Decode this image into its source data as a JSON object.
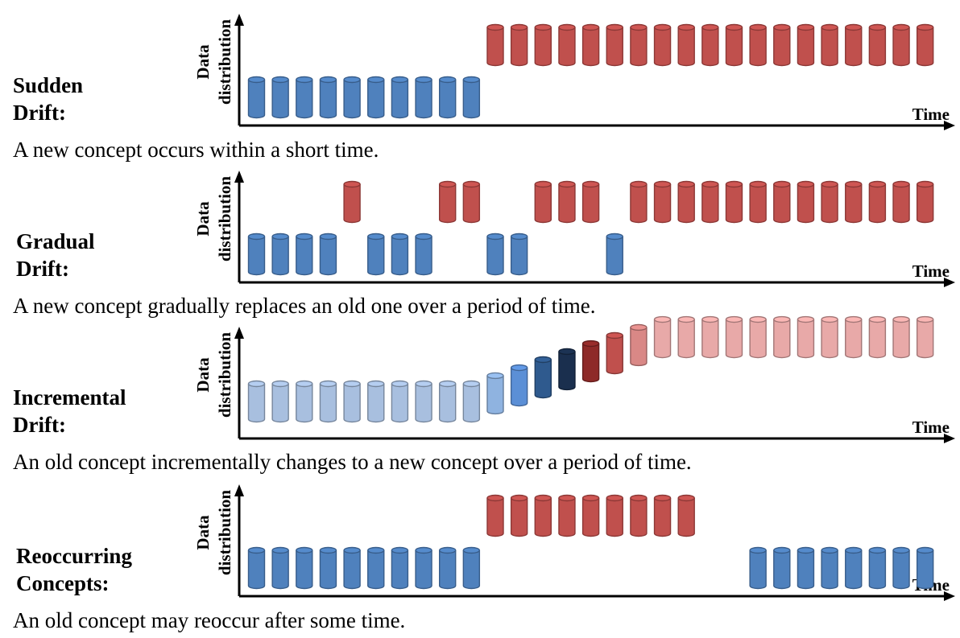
{
  "axis": {
    "y_label_line1": "Data",
    "y_label_line2": "distribution",
    "x_label": "Time"
  },
  "colors": {
    "blue": "#4f81bd",
    "blue_stroke": "#385d8a",
    "red": "#c0504d",
    "red_stroke": "#8c3836"
  },
  "panels": [
    {
      "id": "sudden",
      "title_line1": "Sudden",
      "title_line2": "Drift:",
      "description": "A new concept occurs within a short time.",
      "columns": [
        "b",
        "b",
        "b",
        "b",
        "b",
        "b",
        "b",
        "b",
        "b",
        "b",
        "r",
        "r",
        "r",
        "r",
        "r",
        "r",
        "r",
        "r",
        "r",
        "r",
        "r",
        "r",
        "r",
        "r",
        "r",
        "r",
        "r",
        "r",
        "r"
      ]
    },
    {
      "id": "gradual",
      "title_line1": "Gradual",
      "title_line2": "Drift:",
      "description": "A new concept gradually replaces an old one over a period of time.",
      "columns": [
        "b",
        "b",
        "b",
        "b",
        "r",
        "b",
        "b",
        "b",
        "r",
        "r",
        "b",
        "b",
        "r",
        "r",
        "r",
        "b",
        "r",
        "r",
        "r",
        "r",
        "r",
        "r",
        "r",
        "r",
        "r",
        "r",
        "r",
        "r",
        "r"
      ]
    },
    {
      "id": "incremental",
      "title_line1": "Incremental",
      "title_line2": "Drift:",
      "description": "An old concept incrementally changes to a new concept over a period of time.",
      "columns": [
        "lb",
        "lb",
        "lb",
        "lb",
        "lb",
        "lb",
        "lb",
        "lb",
        "lb",
        "lb",
        "s1",
        "s2",
        "s3",
        "s4",
        "s5",
        "s6",
        "s7",
        "lr",
        "lr",
        "lr",
        "lr",
        "lr",
        "lr",
        "lr",
        "lr",
        "lr",
        "lr",
        "lr",
        "lr"
      ],
      "level_colors": {
        "lb": "#a8bfdf",
        "s1": "#8fb3e0",
        "s2": "#5b8fd6",
        "s3": "#2f5a8e",
        "s4": "#1a2f4e",
        "s5": "#8e2a28",
        "s6": "#c0504d",
        "s7": "#d98886",
        "lr": "#e8a9a8"
      },
      "levels": [
        0,
        0,
        0,
        0,
        0,
        0,
        0,
        0,
        0,
        0,
        0.167,
        0.333,
        0.5,
        0.667,
        0.833,
        1.0,
        1.167,
        1.333,
        1.333,
        1.333,
        1.333,
        1.333,
        1.333,
        1.333,
        1.333,
        1.333,
        1.333,
        1.333,
        1.333
      ]
    },
    {
      "id": "reoccurring",
      "title_line1": "Reoccurring",
      "title_line2": "Concepts:",
      "description": "An old concept may reoccur after some time.",
      "columns": [
        "b",
        "b",
        "b",
        "b",
        "b",
        "b",
        "b",
        "b",
        "b",
        "b",
        "r",
        "r",
        "r",
        "r",
        "r",
        "r",
        "r",
        "r",
        "r",
        "-",
        "-",
        "b",
        "b",
        "b",
        "b",
        "b",
        "b",
        "b",
        "b"
      ]
    }
  ]
}
